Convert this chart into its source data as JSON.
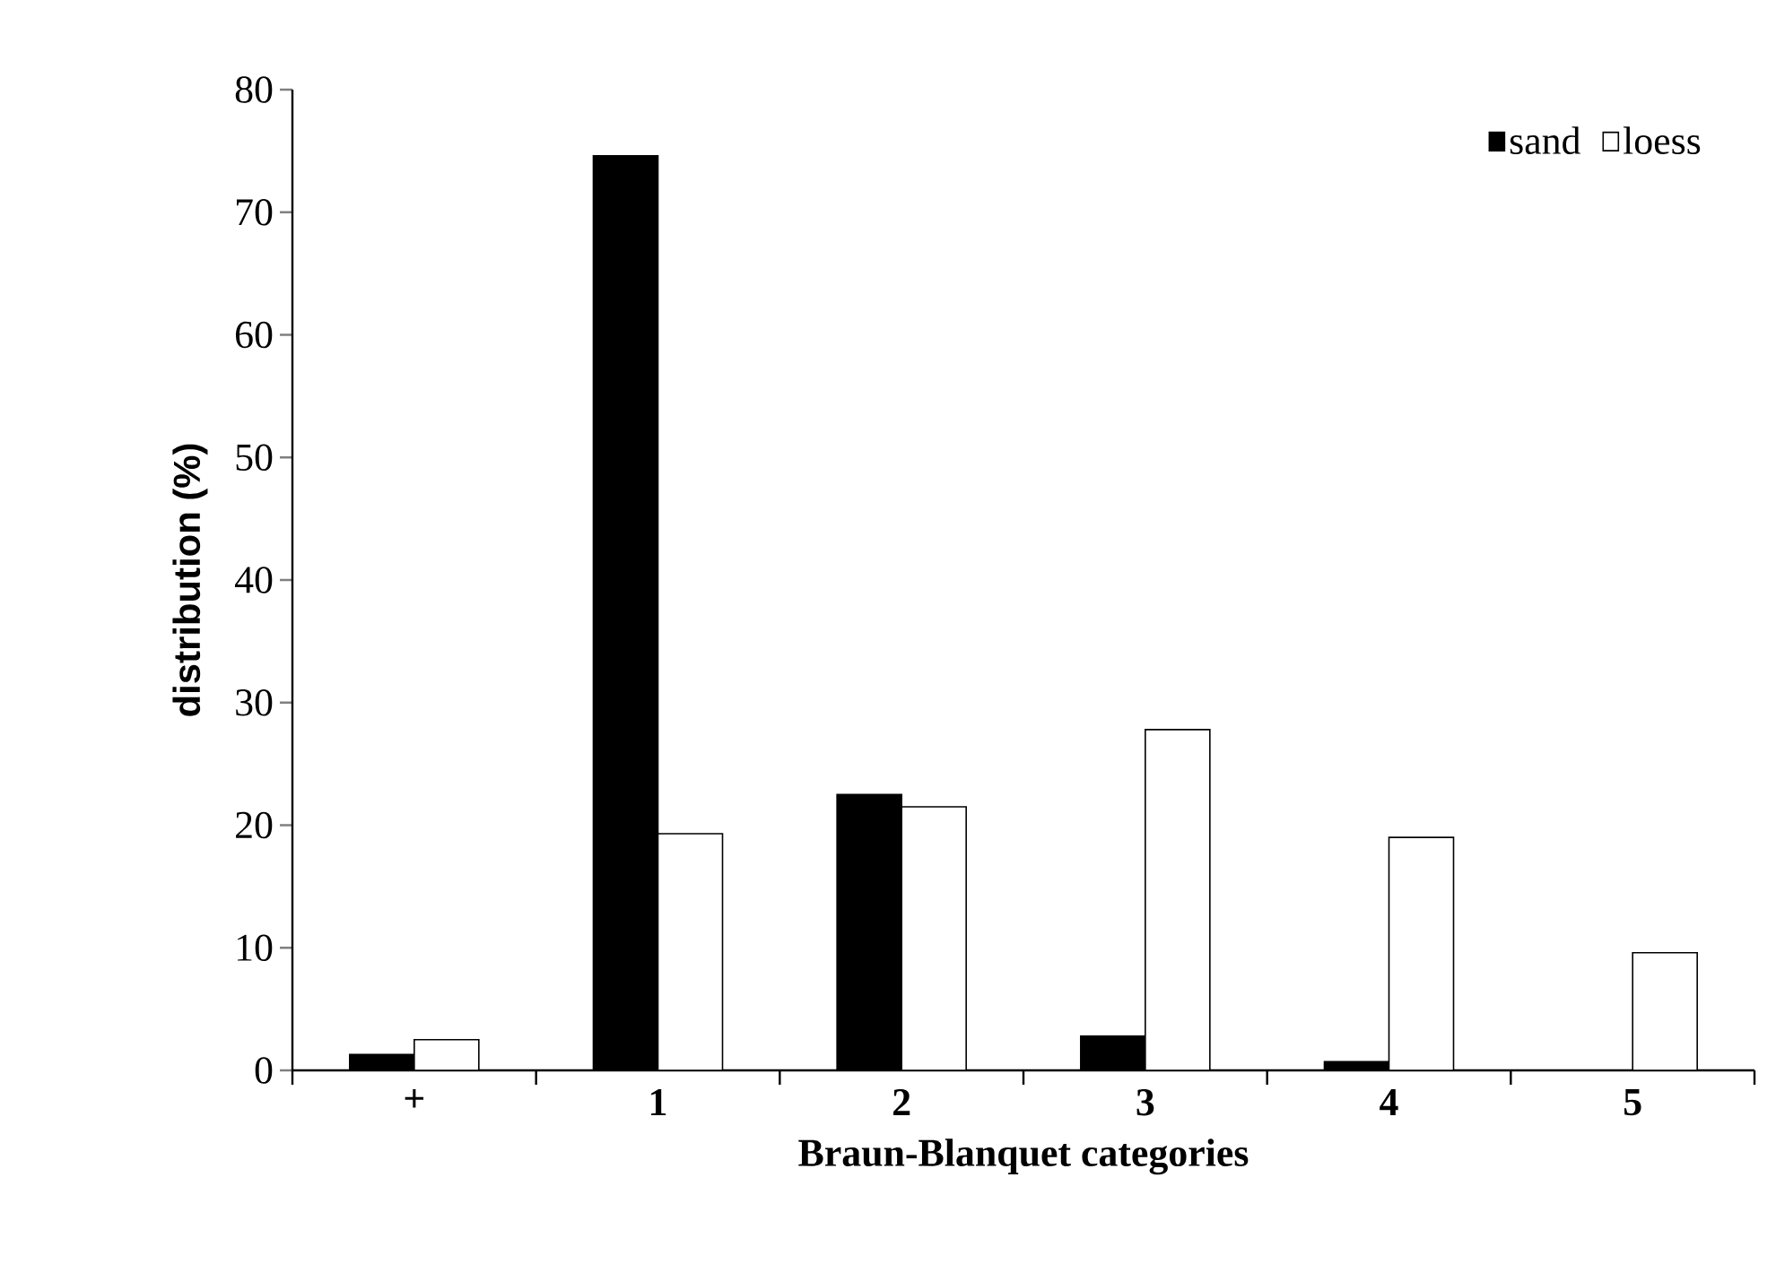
{
  "chart_data": {
    "type": "bar",
    "xlabel": "Braun-Blanquet categories",
    "ylabel": "distribution (%)",
    "categories": [
      "+",
      "1",
      "2",
      "3",
      "4",
      "5"
    ],
    "series": [
      {
        "name": "sand",
        "color": "#000000",
        "values": [
          1.3,
          74.6,
          22.5,
          2.8,
          0.7,
          0
        ]
      },
      {
        "name": "loess",
        "color": "#ffffff",
        "values": [
          2.5,
          19.3,
          21.5,
          27.8,
          19.0,
          9.6
        ]
      }
    ],
    "ylim": [
      0,
      80
    ],
    "yticks": [
      0,
      10,
      20,
      30,
      40,
      50,
      60,
      70,
      80
    ],
    "legend": "top right"
  }
}
